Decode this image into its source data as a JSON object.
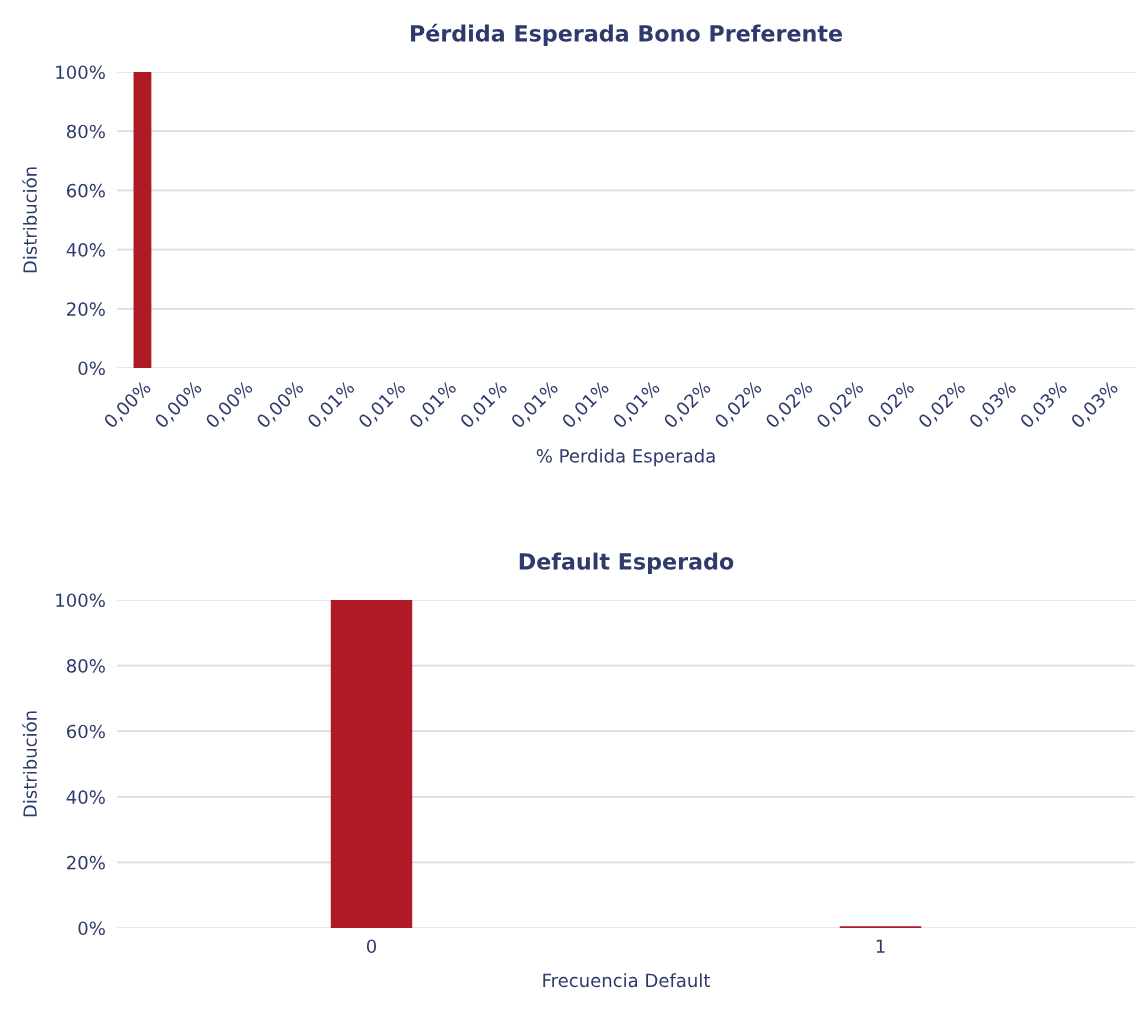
{
  "chart_data": [
    {
      "type": "bar",
      "title": "Pérdida Esperada Bono Preferente",
      "xlabel": "% Perdida Esperada",
      "ylabel": "Distribución",
      "categories": [
        "0,00%",
        "0,00%",
        "0,00%",
        "0,00%",
        "0,01%",
        "0,01%",
        "0,01%",
        "0,01%",
        "0,01%",
        "0,01%",
        "0,01%",
        "0,02%",
        "0,02%",
        "0,02%",
        "0,02%",
        "0,02%",
        "0,02%",
        "0,03%",
        "0,03%",
        "0,03%"
      ],
      "values": [
        100,
        0,
        0,
        0,
        0,
        0,
        0,
        0,
        0,
        0,
        0,
        0,
        0,
        0,
        0,
        0,
        0,
        0,
        0,
        0
      ],
      "color": "#b01a24",
      "ylim": [
        0,
        100
      ],
      "yticks": [
        {
          "value": 0,
          "label": "0%"
        },
        {
          "value": 20,
          "label": "20%"
        },
        {
          "value": 40,
          "label": "40%"
        },
        {
          "value": 60,
          "label": "60%"
        },
        {
          "value": 80,
          "label": "80%"
        },
        {
          "value": 100,
          "label": "100%"
        }
      ],
      "grid": "y",
      "legend": false
    },
    {
      "type": "bar",
      "title": "Default Esperado",
      "xlabel": "Frecuencia Default",
      "ylabel": "Distribución",
      "categories": [
        "0",
        "1"
      ],
      "values": [
        100,
        0.5
      ],
      "color": "#b01a24",
      "ylim": [
        0,
        100
      ],
      "yticks": [
        {
          "value": 0,
          "label": "0%"
        },
        {
          "value": 20,
          "label": "20%"
        },
        {
          "value": 40,
          "label": "40%"
        },
        {
          "value": 60,
          "label": "60%"
        },
        {
          "value": 80,
          "label": "80%"
        },
        {
          "value": 100,
          "label": "100%"
        }
      ],
      "grid": "y",
      "legend": false
    }
  ]
}
